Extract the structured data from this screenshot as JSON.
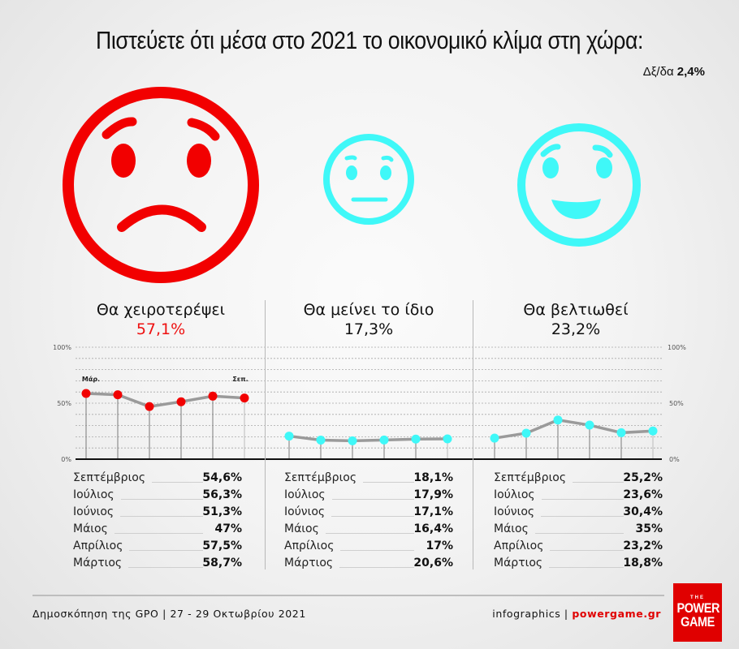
{
  "header": {
    "title": "Πιστεύετε ότι μέσα στο 2021 το οικονομικό κλίμα στη χώρα:",
    "dk_label": "Δξ/δα",
    "dk_value": "2,4%"
  },
  "colors": {
    "negative": "#f20000",
    "neutral": "#3ff8f8",
    "line": "#9a9a9a",
    "brand_red": "#e00000"
  },
  "faces": [
    {
      "icon": "sad-face-icon",
      "color": "#f20000"
    },
    {
      "icon": "neutral-face-icon",
      "color": "#3ff8f8"
    },
    {
      "icon": "happy-face-icon",
      "color": "#3ff8f8"
    }
  ],
  "chart_data": {
    "type": "line",
    "title": "Πιστεύετε ότι μέσα στο 2021 το οικονομικό κλίμα στη χώρα:",
    "x": [
      "Μάρτιος",
      "Απρίλιος",
      "Μάιος",
      "Ιούνιος",
      "Ιούλιος",
      "Σεπτέμβριος"
    ],
    "x_markers": {
      "first": "Μάρ.",
      "last": "Σεπ."
    },
    "ylim": [
      0,
      100
    ],
    "yticks": [
      "0%",
      "50%",
      "100%"
    ],
    "grid": true,
    "series": [
      {
        "name": "Θα χειροτερέψει",
        "current": "57,1%",
        "color": "#f20000",
        "values": [
          58.7,
          57.5,
          47,
          51.3,
          56.3,
          54.6
        ]
      },
      {
        "name": "Θα μείνει το ίδιο",
        "current": "17,3%",
        "color": "#3ff8f8",
        "values": [
          20.6,
          17,
          16.4,
          17.1,
          17.9,
          18.1
        ]
      },
      {
        "name": "Θα βελτιωθεί",
        "current": "23,2%",
        "color": "#3ff8f8",
        "values": [
          18.8,
          23.2,
          35,
          30.4,
          23.6,
          25.2
        ]
      }
    ]
  },
  "columns": [
    {
      "label": "Θα χειροτερέψει",
      "value": "57,1%",
      "table": [
        {
          "month": "Σεπτέμβριος",
          "value": "54,6%"
        },
        {
          "month": "Ιούλιος",
          "value": "56,3%"
        },
        {
          "month": "Ιούνιος",
          "value": "51,3%"
        },
        {
          "month": "Μάιος",
          "value": "47%"
        },
        {
          "month": "Απρίλιος",
          "value": "57,5%"
        },
        {
          "month": "Μάρτιος",
          "value": "58,7%"
        }
      ]
    },
    {
      "label": "Θα μείνει το ίδιο",
      "value": "17,3%",
      "table": [
        {
          "month": "Σεπτέμβριος",
          "value": "18,1%"
        },
        {
          "month": "Ιούλιος",
          "value": "17,9%"
        },
        {
          "month": "Ιούνιος",
          "value": "17,1%"
        },
        {
          "month": "Μάιος",
          "value": "16,4%"
        },
        {
          "month": "Απρίλιος",
          "value": "17%"
        },
        {
          "month": "Μάρτιος",
          "value": "20,6%"
        }
      ]
    },
    {
      "label": "Θα βελτιωθεί",
      "value": "23,2%",
      "table": [
        {
          "month": "Σεπτέμβριος",
          "value": "25,2%"
        },
        {
          "month": "Ιούλιος",
          "value": "23,6%"
        },
        {
          "month": "Ιούνιος",
          "value": "30,4%"
        },
        {
          "month": "Μάιος",
          "value": "35%"
        },
        {
          "month": "Απρίλιος",
          "value": "23,2%"
        },
        {
          "month": "Μάρτιος",
          "value": "18,8%"
        }
      ]
    }
  ],
  "footer": {
    "source": "Δημοσκόπηση της GPO | 27 - 29 Οκτωβρίου 2021",
    "credit_prefix": "infographics | ",
    "credit_brand": "powergame.gr",
    "logo_the": "THE",
    "logo_line1": "POWER",
    "logo_line2": "GAME"
  }
}
